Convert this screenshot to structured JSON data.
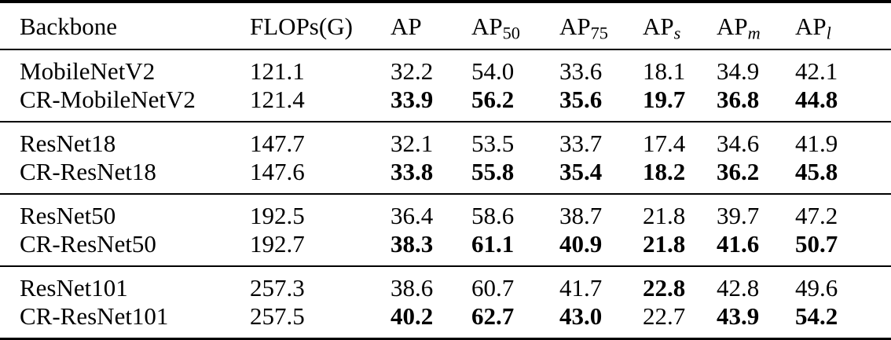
{
  "table": {
    "header": {
      "columns": [
        {
          "key": "backbone",
          "text": "Backbone",
          "sub": "",
          "sub_italic": false
        },
        {
          "key": "flops-g",
          "text": "FLOPs(G)",
          "sub": "",
          "sub_italic": false
        },
        {
          "key": "ap",
          "text": "AP",
          "sub": "",
          "sub_italic": false
        },
        {
          "key": "ap-50",
          "text": "AP",
          "sub": "50",
          "sub_italic": false
        },
        {
          "key": "ap-75",
          "text": "AP",
          "sub": "75",
          "sub_italic": false
        },
        {
          "key": "ap-s",
          "text": "AP",
          "sub": "s",
          "sub_italic": true
        },
        {
          "key": "ap-m",
          "text": "AP",
          "sub": "m",
          "sub_italic": true
        },
        {
          "key": "ap-l",
          "text": "AP",
          "sub": "l",
          "sub_italic": true
        }
      ]
    },
    "groups": [
      {
        "rows": [
          {
            "backbone": "MobileNetV2",
            "flops": "121.1",
            "metrics": [
              {
                "v": "32.2",
                "bold": false
              },
              {
                "v": "54.0",
                "bold": false
              },
              {
                "v": "33.6",
                "bold": false
              },
              {
                "v": "18.1",
                "bold": false
              },
              {
                "v": "34.9",
                "bold": false
              },
              {
                "v": "42.1",
                "bold": false
              }
            ]
          },
          {
            "backbone": "CR-MobileNetV2",
            "flops": "121.4",
            "metrics": [
              {
                "v": "33.9",
                "bold": true
              },
              {
                "v": "56.2",
                "bold": true
              },
              {
                "v": "35.6",
                "bold": true
              },
              {
                "v": "19.7",
                "bold": true
              },
              {
                "v": "36.8",
                "bold": true
              },
              {
                "v": "44.8",
                "bold": true
              }
            ]
          }
        ]
      },
      {
        "rows": [
          {
            "backbone": "ResNet18",
            "flops": "147.7",
            "metrics": [
              {
                "v": "32.1",
                "bold": false
              },
              {
                "v": "53.5",
                "bold": false
              },
              {
                "v": "33.7",
                "bold": false
              },
              {
                "v": "17.4",
                "bold": false
              },
              {
                "v": "34.6",
                "bold": false
              },
              {
                "v": "41.9",
                "bold": false
              }
            ]
          },
          {
            "backbone": "CR-ResNet18",
            "flops": "147.6",
            "metrics": [
              {
                "v": "33.8",
                "bold": true
              },
              {
                "v": "55.8",
                "bold": true
              },
              {
                "v": "35.4",
                "bold": true
              },
              {
                "v": "18.2",
                "bold": true
              },
              {
                "v": "36.2",
                "bold": true
              },
              {
                "v": "45.8",
                "bold": true
              }
            ]
          }
        ]
      },
      {
        "rows": [
          {
            "backbone": "ResNet50",
            "flops": "192.5",
            "metrics": [
              {
                "v": "36.4",
                "bold": false
              },
              {
                "v": "58.6",
                "bold": false
              },
              {
                "v": "38.7",
                "bold": false
              },
              {
                "v": "21.8",
                "bold": false
              },
              {
                "v": "39.7",
                "bold": false
              },
              {
                "v": "47.2",
                "bold": false
              }
            ]
          },
          {
            "backbone": "CR-ResNet50",
            "flops": "192.7",
            "metrics": [
              {
                "v": "38.3",
                "bold": true
              },
              {
                "v": "61.1",
                "bold": true
              },
              {
                "v": "40.9",
                "bold": true
              },
              {
                "v": "21.8",
                "bold": true
              },
              {
                "v": "41.6",
                "bold": true
              },
              {
                "v": "50.7",
                "bold": true
              }
            ]
          }
        ]
      },
      {
        "rows": [
          {
            "backbone": "ResNet101",
            "flops": "257.3",
            "metrics": [
              {
                "v": "38.6",
                "bold": false
              },
              {
                "v": "60.7",
                "bold": false
              },
              {
                "v": "41.7",
                "bold": false
              },
              {
                "v": "22.8",
                "bold": true
              },
              {
                "v": "42.8",
                "bold": false
              },
              {
                "v": "49.6",
                "bold": false
              }
            ]
          },
          {
            "backbone": "CR-ResNet101",
            "flops": "257.5",
            "metrics": [
              {
                "v": "40.2",
                "bold": true
              },
              {
                "v": "62.7",
                "bold": true
              },
              {
                "v": "43.0",
                "bold": true
              },
              {
                "v": "22.7",
                "bold": false
              },
              {
                "v": "43.9",
                "bold": true
              },
              {
                "v": "54.2",
                "bold": true
              }
            ]
          }
        ]
      }
    ]
  }
}
